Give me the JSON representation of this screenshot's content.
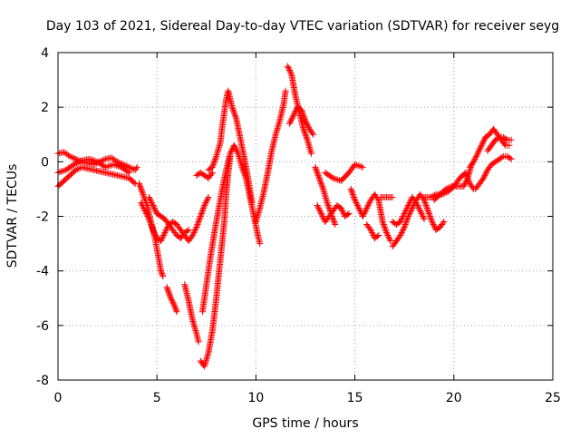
{
  "chart_data": {
    "type": "scatter",
    "title": "Day 103 of 2021, Sidereal Day-to-day VTEC variation (SDTVAR) for receiver seyg",
    "xlabel": "GPS time / hours",
    "ylabel": "SDTVAR / TECUs",
    "xlim": [
      0,
      25
    ],
    "ylim": [
      -8,
      4
    ],
    "xticks": [
      0,
      5,
      10,
      15,
      20,
      25
    ],
    "yticks": [
      -8,
      -6,
      -4,
      -2,
      0,
      2,
      4
    ],
    "grid": true,
    "marker": "+",
    "color": "#ff0000",
    "series": [
      {
        "values": [
          [
            0.0,
            -0.9
          ],
          [
            0.3,
            -0.7
          ],
          [
            0.6,
            -0.5
          ],
          [
            0.9,
            -0.3
          ],
          [
            1.2,
            -0.2
          ],
          [
            1.5,
            -0.25
          ],
          [
            1.8,
            -0.3
          ],
          [
            2.1,
            -0.35
          ],
          [
            2.4,
            -0.4
          ],
          [
            2.7,
            -0.45
          ],
          [
            3.0,
            -0.5
          ],
          [
            3.3,
            -0.55
          ],
          [
            3.6,
            -0.6
          ],
          [
            3.9,
            -0.8
          ]
        ]
      },
      {
        "values": [
          [
            0.0,
            0.3
          ],
          [
            0.3,
            0.35
          ],
          [
            0.6,
            0.2
          ],
          [
            0.9,
            0.1
          ],
          [
            1.2,
            0.0
          ],
          [
            1.5,
            -0.05
          ],
          [
            1.8,
            -0.1
          ],
          [
            2.1,
            0.0
          ],
          [
            2.4,
            0.1
          ],
          [
            2.7,
            0.15
          ],
          [
            3.0,
            0.0
          ],
          [
            3.3,
            -0.1
          ],
          [
            3.6,
            -0.2
          ],
          [
            3.9,
            -0.3
          ],
          [
            4.0,
            -0.2
          ]
        ]
      },
      {
        "values": [
          [
            0.0,
            -0.4
          ],
          [
            0.4,
            -0.3
          ],
          [
            0.8,
            -0.1
          ],
          [
            1.2,
            0.05
          ],
          [
            1.6,
            0.1
          ],
          [
            2.0,
            0.0
          ],
          [
            2.4,
            -0.2
          ],
          [
            2.8,
            -0.1
          ],
          [
            3.2,
            -0.2
          ],
          [
            3.6,
            -0.4
          ]
        ]
      },
      {
        "values": [
          [
            4.1,
            -0.8
          ],
          [
            4.3,
            -1.2
          ],
          [
            4.5,
            -1.6
          ],
          [
            4.7,
            -2.2
          ],
          [
            4.9,
            -2.8
          ],
          [
            5.0,
            -3.2
          ],
          [
            5.1,
            -3.6
          ],
          [
            5.2,
            -4.0
          ],
          [
            5.3,
            -4.2
          ]
        ]
      },
      {
        "values": [
          [
            4.2,
            -1.5
          ],
          [
            4.4,
            -1.8
          ],
          [
            4.6,
            -2.1
          ],
          [
            4.8,
            -2.5
          ],
          [
            5.0,
            -2.8
          ],
          [
            5.2,
            -2.9
          ],
          [
            5.4,
            -2.6
          ],
          [
            5.6,
            -2.3
          ],
          [
            5.8,
            -2.2
          ],
          [
            6.0,
            -2.3
          ],
          [
            6.2,
            -2.5
          ],
          [
            6.4,
            -2.7
          ],
          [
            6.6,
            -2.9
          ],
          [
            6.8,
            -2.7
          ],
          [
            7.0,
            -2.4
          ],
          [
            7.2,
            -2.0
          ],
          [
            7.4,
            -1.6
          ],
          [
            7.6,
            -1.3
          ]
        ]
      },
      {
        "values": [
          [
            4.6,
            -1.3
          ],
          [
            4.8,
            -1.6
          ],
          [
            5.0,
            -1.9
          ],
          [
            5.2,
            -2.0
          ],
          [
            5.4,
            -2.1
          ],
          [
            5.6,
            -2.3
          ],
          [
            5.8,
            -2.5
          ],
          [
            6.0,
            -2.7
          ],
          [
            6.2,
            -2.8
          ],
          [
            6.4,
            -2.6
          ],
          [
            6.6,
            -2.5
          ]
        ]
      },
      {
        "values": [
          [
            5.5,
            -4.6
          ],
          [
            5.7,
            -5.0
          ],
          [
            5.9,
            -5.3
          ],
          [
            6.0,
            -5.5
          ]
        ]
      },
      {
        "values": [
          [
            6.4,
            -4.5
          ],
          [
            6.6,
            -5.1
          ],
          [
            6.8,
            -5.8
          ],
          [
            7.0,
            -6.3
          ],
          [
            7.1,
            -6.6
          ]
        ]
      },
      {
        "values": [
          [
            7.2,
            -7.3
          ],
          [
            7.4,
            -7.5
          ],
          [
            7.6,
            -7.0
          ],
          [
            7.8,
            -6.2
          ],
          [
            8.0,
            -5.0
          ],
          [
            8.2,
            -3.6
          ],
          [
            8.4,
            -2.2
          ],
          [
            8.5,
            -1.2
          ],
          [
            8.6,
            -0.4
          ],
          [
            8.7,
            0.2
          ]
        ]
      },
      {
        "values": [
          [
            7.3,
            -5.5
          ],
          [
            7.5,
            -4.5
          ],
          [
            7.7,
            -3.5
          ],
          [
            7.9,
            -2.6
          ],
          [
            8.1,
            -1.8
          ],
          [
            8.3,
            -1.0
          ],
          [
            8.5,
            -0.3
          ],
          [
            8.7,
            0.3
          ],
          [
            8.9,
            0.6
          ],
          [
            9.1,
            0.3
          ],
          [
            9.3,
            -0.2
          ],
          [
            9.5,
            -0.6
          ],
          [
            9.7,
            -1.3
          ],
          [
            9.9,
            -2.0
          ],
          [
            10.1,
            -2.7
          ],
          [
            10.2,
            -3.0
          ]
        ]
      },
      {
        "values": [
          [
            7.6,
            -0.3
          ],
          [
            7.8,
            -0.2
          ],
          [
            8.0,
            0.2
          ],
          [
            8.2,
            0.7
          ],
          [
            8.3,
            1.3
          ],
          [
            8.4,
            1.8
          ],
          [
            8.5,
            2.3
          ],
          [
            8.6,
            2.6
          ],
          [
            8.8,
            2.0
          ],
          [
            9.0,
            1.6
          ],
          [
            9.2,
            0.9
          ],
          [
            9.4,
            0.2
          ],
          [
            9.6,
            -0.6
          ],
          [
            9.8,
            -1.5
          ]
        ]
      },
      {
        "values": [
          [
            7.0,
            -0.5
          ],
          [
            7.2,
            -0.4
          ],
          [
            7.4,
            -0.5
          ],
          [
            7.6,
            -0.6
          ],
          [
            7.8,
            -0.4
          ]
        ]
      },
      {
        "values": [
          [
            10.0,
            -2.2
          ],
          [
            10.2,
            -1.7
          ],
          [
            10.4,
            -1.1
          ],
          [
            10.6,
            -0.4
          ],
          [
            10.8,
            0.4
          ],
          [
            11.0,
            1.0
          ],
          [
            11.2,
            1.5
          ],
          [
            11.4,
            2.1
          ],
          [
            11.5,
            2.6
          ]
        ]
      },
      {
        "values": [
          [
            11.6,
            3.5
          ],
          [
            11.8,
            3.2
          ],
          [
            12.0,
            2.4
          ],
          [
            12.2,
            1.8
          ],
          [
            12.4,
            1.2
          ],
          [
            12.6,
            0.8
          ],
          [
            12.8,
            0.3
          ]
        ]
      },
      {
        "values": [
          [
            11.7,
            1.4
          ],
          [
            11.9,
            1.7
          ],
          [
            12.1,
            2.0
          ],
          [
            12.3,
            1.9
          ],
          [
            12.5,
            1.5
          ],
          [
            12.7,
            1.2
          ],
          [
            12.9,
            1.0
          ]
        ]
      },
      {
        "values": [
          [
            13.0,
            -0.2
          ],
          [
            13.2,
            -0.6
          ],
          [
            13.4,
            -1.0
          ],
          [
            13.6,
            -1.5
          ],
          [
            13.8,
            -1.9
          ],
          [
            14.0,
            -2.3
          ]
        ]
      },
      {
        "values": [
          [
            13.1,
            -1.6
          ],
          [
            13.3,
            -1.9
          ],
          [
            13.5,
            -2.2
          ],
          [
            13.7,
            -2.0
          ],
          [
            13.9,
            -1.8
          ],
          [
            14.1,
            -1.6
          ],
          [
            14.3,
            -1.7
          ],
          [
            14.5,
            -2.0
          ],
          [
            14.7,
            -1.9
          ]
        ]
      },
      {
        "values": [
          [
            13.5,
            -0.4
          ],
          [
            13.9,
            -0.6
          ],
          [
            14.3,
            -0.7
          ],
          [
            14.7,
            -0.4
          ],
          [
            15.0,
            -0.1
          ],
          [
            15.4,
            -0.2
          ]
        ]
      },
      {
        "values": [
          [
            14.8,
            -1.0
          ],
          [
            15.0,
            -1.4
          ],
          [
            15.2,
            -1.7
          ],
          [
            15.4,
            -2.0
          ],
          [
            15.6,
            -1.7
          ],
          [
            15.8,
            -1.4
          ],
          [
            16.0,
            -1.2
          ],
          [
            16.2,
            -1.4
          ],
          [
            16.4,
            -2.2
          ],
          [
            16.6,
            -2.6
          ],
          [
            16.8,
            -2.9
          ]
        ]
      },
      {
        "values": [
          [
            15.6,
            -2.3
          ],
          [
            15.8,
            -2.5
          ],
          [
            16.0,
            -2.8
          ],
          [
            16.2,
            -2.7
          ]
        ]
      },
      {
        "values": [
          [
            16.3,
            -1.3
          ],
          [
            16.6,
            -1.3
          ],
          [
            16.9,
            -1.3
          ]
        ]
      },
      {
        "values": [
          [
            16.9,
            -2.2
          ],
          [
            17.1,
            -2.3
          ],
          [
            17.3,
            -2.2
          ],
          [
            17.5,
            -1.9
          ],
          [
            17.7,
            -1.6
          ],
          [
            17.9,
            -1.3
          ],
          [
            18.1,
            -1.5
          ],
          [
            18.3,
            -1.8
          ],
          [
            18.5,
            -2.1
          ]
        ]
      },
      {
        "values": [
          [
            16.9,
            -3.1
          ],
          [
            17.1,
            -2.9
          ],
          [
            17.3,
            -2.7
          ],
          [
            17.5,
            -2.4
          ],
          [
            17.7,
            -2.0
          ],
          [
            17.9,
            -1.7
          ],
          [
            18.1,
            -1.4
          ],
          [
            18.3,
            -1.2
          ],
          [
            18.5,
            -1.4
          ],
          [
            18.7,
            -1.8
          ],
          [
            18.9,
            -2.2
          ],
          [
            19.1,
            -2.5
          ],
          [
            19.3,
            -2.4
          ],
          [
            19.5,
            -2.2
          ]
        ]
      },
      {
        "values": [
          [
            18.5,
            -1.3
          ],
          [
            18.8,
            -1.3
          ],
          [
            19.1,
            -1.2
          ],
          [
            19.4,
            -1.2
          ],
          [
            19.7,
            -1.1
          ],
          [
            20.0,
            -0.9
          ],
          [
            20.3,
            -0.6
          ],
          [
            20.6,
            -0.4
          ],
          [
            20.8,
            -0.8
          ],
          [
            21.0,
            -1.0
          ]
        ]
      },
      {
        "values": [
          [
            19.0,
            -1.4
          ],
          [
            19.3,
            -1.2
          ],
          [
            19.6,
            -1.0
          ],
          [
            19.9,
            -0.9
          ],
          [
            20.2,
            -0.9
          ],
          [
            20.5,
            -0.9
          ],
          [
            20.7,
            -0.6
          ],
          [
            20.9,
            -0.1
          ]
        ]
      },
      {
        "values": [
          [
            20.8,
            -0.2
          ],
          [
            21.0,
            0.0
          ],
          [
            21.2,
            0.3
          ],
          [
            21.4,
            0.6
          ],
          [
            21.6,
            0.9
          ],
          [
            21.8,
            1.0
          ],
          [
            22.0,
            1.2
          ],
          [
            22.2,
            1.0
          ],
          [
            22.4,
            0.8
          ],
          [
            22.6,
            0.6
          ],
          [
            22.8,
            0.6
          ]
        ]
      },
      {
        "values": [
          [
            21.1,
            -1.0
          ],
          [
            21.3,
            -0.8
          ],
          [
            21.5,
            -0.6
          ],
          [
            21.7,
            -0.3
          ],
          [
            21.9,
            -0.1
          ],
          [
            22.1,
            0.0
          ],
          [
            22.3,
            0.1
          ],
          [
            22.5,
            0.2
          ],
          [
            22.7,
            0.2
          ],
          [
            22.9,
            0.1
          ]
        ]
      },
      {
        "values": [
          [
            21.7,
            0.4
          ],
          [
            21.9,
            0.6
          ],
          [
            22.1,
            0.8
          ],
          [
            22.3,
            0.9
          ],
          [
            22.5,
            0.9
          ],
          [
            22.7,
            0.8
          ],
          [
            22.9,
            0.8
          ]
        ]
      }
    ]
  }
}
